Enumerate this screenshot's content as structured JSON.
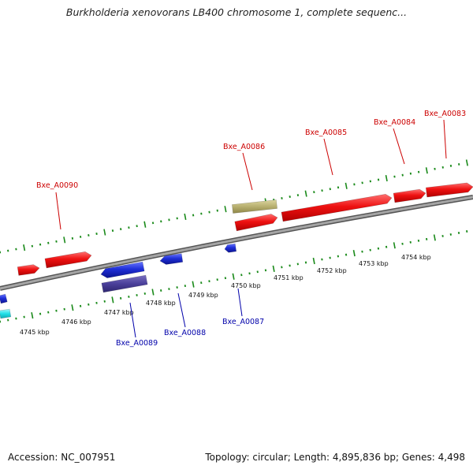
{
  "title": "Burkholderia xenovorans LB400 chromosome 1, complete sequenc...",
  "footer": {
    "accession": "Accession: NC_007951",
    "summary": "Topology: circular; Length: 4,895,836 bp; Genes: 4,498"
  },
  "colors": {
    "forward_gene": "#ee1111",
    "reverse_gene": "#1f2fd8",
    "forward_label": "#cc0000",
    "reverse_label": "#0000aa",
    "ruler": "#1a8a1a",
    "backbone": "#888888",
    "olive_feature": "#b8b070",
    "navy_feature": "#4a3f9a",
    "cyan_feature": "#20e0e8"
  },
  "ruler_labels": [
    "4745 kbp",
    "4746 kbp",
    "4747 kbp",
    "4748 kbp",
    "4749 kbp",
    "4750 kbp",
    "4751 kbp",
    "4752 kbp",
    "4753 kbp",
    "4754 kbp"
  ],
  "forward_gene_labels": [
    "Bxe_A0090",
    "Bxe_A0086",
    "Bxe_A0085",
    "Bxe_A0084",
    "Bxe_A0083"
  ],
  "reverse_gene_labels": [
    "Bxe_A0089",
    "Bxe_A0088",
    "Bxe_A0087"
  ]
}
